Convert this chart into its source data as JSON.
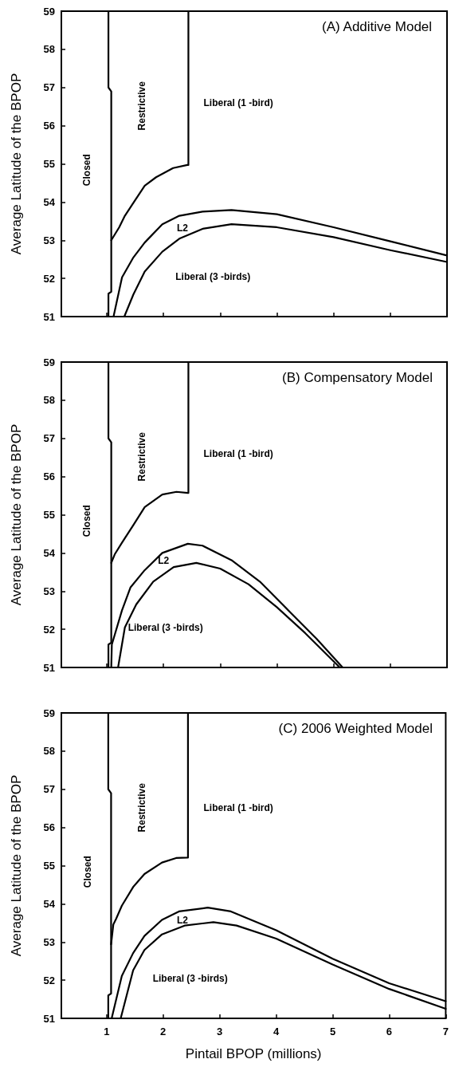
{
  "chart_data": [
    {
      "type": "line",
      "title": "(A) Additive Model",
      "ylabel": "Average Latitude of the BPOP",
      "xlim": [
        0.2,
        7
      ],
      "xticks": [
        1,
        2,
        3,
        4,
        5,
        6,
        7
      ],
      "ylim": [
        51,
        59
      ],
      "yticks": [
        51,
        52,
        53,
        54,
        55,
        56,
        57,
        58,
        59
      ],
      "grid": false,
      "marker": "none",
      "line_style": "solid",
      "tick_labels": "y",
      "series": [
        {
          "color": "#000000",
          "x": [
            1.03,
            1.03,
            1.08,
            1.08,
            1.03,
            1.03
          ],
          "values": [
            59,
            57,
            56.9,
            51.65,
            51.6,
            51
          ]
        },
        {
          "color": "#000000",
          "x": [
            1.08,
            1.22,
            1.32,
            1.47,
            1.67,
            1.87,
            2.17,
            2.42,
            2.44,
            2.44
          ],
          "values": [
            53.0,
            53.34,
            53.64,
            53.98,
            54.43,
            54.65,
            54.89,
            54.97,
            54.97,
            59
          ]
        },
        {
          "color": "#000000",
          "x": [
            1.12,
            1.27,
            1.47,
            1.67,
            1.98,
            2.28,
            2.69,
            3.2,
            4.0,
            5.0,
            6.0,
            7.0
          ],
          "values": [
            51,
            52.03,
            52.55,
            52.94,
            53.42,
            53.64,
            53.75,
            53.79,
            53.68,
            53.34,
            52.97,
            52.6
          ]
        },
        {
          "color": "#000000",
          "x": [
            1.31,
            1.47,
            1.67,
            1.98,
            2.28,
            2.69,
            3.2,
            4.0,
            5.0,
            6.0,
            7.0
          ],
          "values": [
            51,
            51.58,
            52.18,
            52.7,
            53.04,
            53.3,
            53.42,
            53.34,
            53.08,
            52.74,
            52.43
          ]
        }
      ],
      "annotations": [
        "Closed",
        "Restrictive",
        "Liberal (1 -bird)",
        "L2",
        "Liberal (3 -birds)"
      ]
    },
    {
      "type": "line",
      "title": "(B) Compensatory Model",
      "ylabel": "Average Latitude of the BPOP",
      "xlim": [
        0.2,
        7
      ],
      "xticks": [
        1,
        2,
        3,
        4,
        5,
        6,
        7
      ],
      "ylim": [
        51,
        59
      ],
      "yticks": [
        51,
        52,
        53,
        54,
        55,
        56,
        57,
        58,
        59
      ],
      "grid": false,
      "marker": "none",
      "line_style": "solid",
      "tick_labels": "y",
      "series": [
        {
          "color": "#000000",
          "x": [
            1.03,
            1.03,
            1.08,
            1.08,
            1.03,
            1.03
          ],
          "values": [
            59,
            57,
            56.9,
            51.65,
            51.6,
            51
          ]
        },
        {
          "color": "#000000",
          "x": [
            1.08,
            1.14,
            1.27,
            1.47,
            1.67,
            1.98,
            2.23,
            2.43,
            2.44,
            2.44
          ],
          "values": [
            53.74,
            53.96,
            54.27,
            54.73,
            55.2,
            55.53,
            55.6,
            55.57,
            55.57,
            59
          ]
        },
        {
          "color": "#000000",
          "x": [
            1.08,
            1.09,
            1.27,
            1.42,
            1.67,
            1.98,
            2.43,
            2.69,
            3.2,
            3.7,
            4.2,
            4.7,
            5.16
          ],
          "values": [
            51,
            51.6,
            52.5,
            53.1,
            53.55,
            54.0,
            54.24,
            54.19,
            53.81,
            53.25,
            52.5,
            51.75,
            51
          ]
        },
        {
          "color": "#000000",
          "x": [
            1.2,
            1.32,
            1.52,
            1.82,
            2.18,
            2.58,
            3.0,
            3.5,
            4.0,
            4.5,
            5.11
          ],
          "values": [
            51,
            52.05,
            52.65,
            53.25,
            53.63,
            53.74,
            53.59,
            53.18,
            52.58,
            51.9,
            51
          ]
        }
      ],
      "annotations": [
        "Closed",
        "Restrictive",
        "Liberal (1 -bird)",
        "L2",
        "Liberal (3 -birds)"
      ]
    },
    {
      "type": "line",
      "title": "(C) 2006 Weighted Model",
      "xlabel": "Pintail BPOP (millions)",
      "ylabel": "Average Latitude of the BPOP",
      "xlim": [
        0.2,
        7
      ],
      "xticks": [
        1,
        2,
        3,
        4,
        5,
        6,
        7
      ],
      "ylim": [
        51,
        59
      ],
      "yticks": [
        51,
        52,
        53,
        54,
        55,
        56,
        57,
        58,
        59
      ],
      "grid": false,
      "marker": "none",
      "line_style": "solid",
      "series": [
        {
          "color": "#000000",
          "x": [
            1.03,
            1.03,
            1.08,
            1.08,
            1.03,
            1.03
          ],
          "values": [
            59,
            57,
            56.9,
            51.65,
            51.6,
            51
          ]
        },
        {
          "color": "#000000",
          "x": [
            1.08,
            1.12,
            1.17,
            1.27,
            1.47,
            1.67,
            1.98,
            2.23,
            2.43,
            2.44,
            2.44
          ],
          "values": [
            52.94,
            53.46,
            53.61,
            53.95,
            54.44,
            54.78,
            55.08,
            55.2,
            55.21,
            55.21,
            59
          ]
        },
        {
          "color": "#000000",
          "x": [
            1.09,
            1.27,
            1.47,
            1.67,
            1.98,
            2.28,
            2.79,
            3.2,
            4.0,
            5.0,
            6.0,
            7.0
          ],
          "values": [
            51,
            52.11,
            52.71,
            53.16,
            53.58,
            53.8,
            53.9,
            53.8,
            53.31,
            52.56,
            51.92,
            51.45
          ]
        },
        {
          "color": "#000000",
          "x": [
            1.25,
            1.47,
            1.67,
            1.98,
            2.38,
            2.89,
            3.3,
            4.0,
            5.0,
            6.0,
            7.0
          ],
          "values": [
            51,
            52.26,
            52.79,
            53.2,
            53.43,
            53.52,
            53.43,
            53.09,
            52.41,
            51.77,
            51.25
          ]
        }
      ],
      "annotations": [
        "Closed",
        "Restrictive",
        "Liberal (1 -bird)",
        "L2",
        "Liberal (3 -birds)"
      ]
    }
  ]
}
